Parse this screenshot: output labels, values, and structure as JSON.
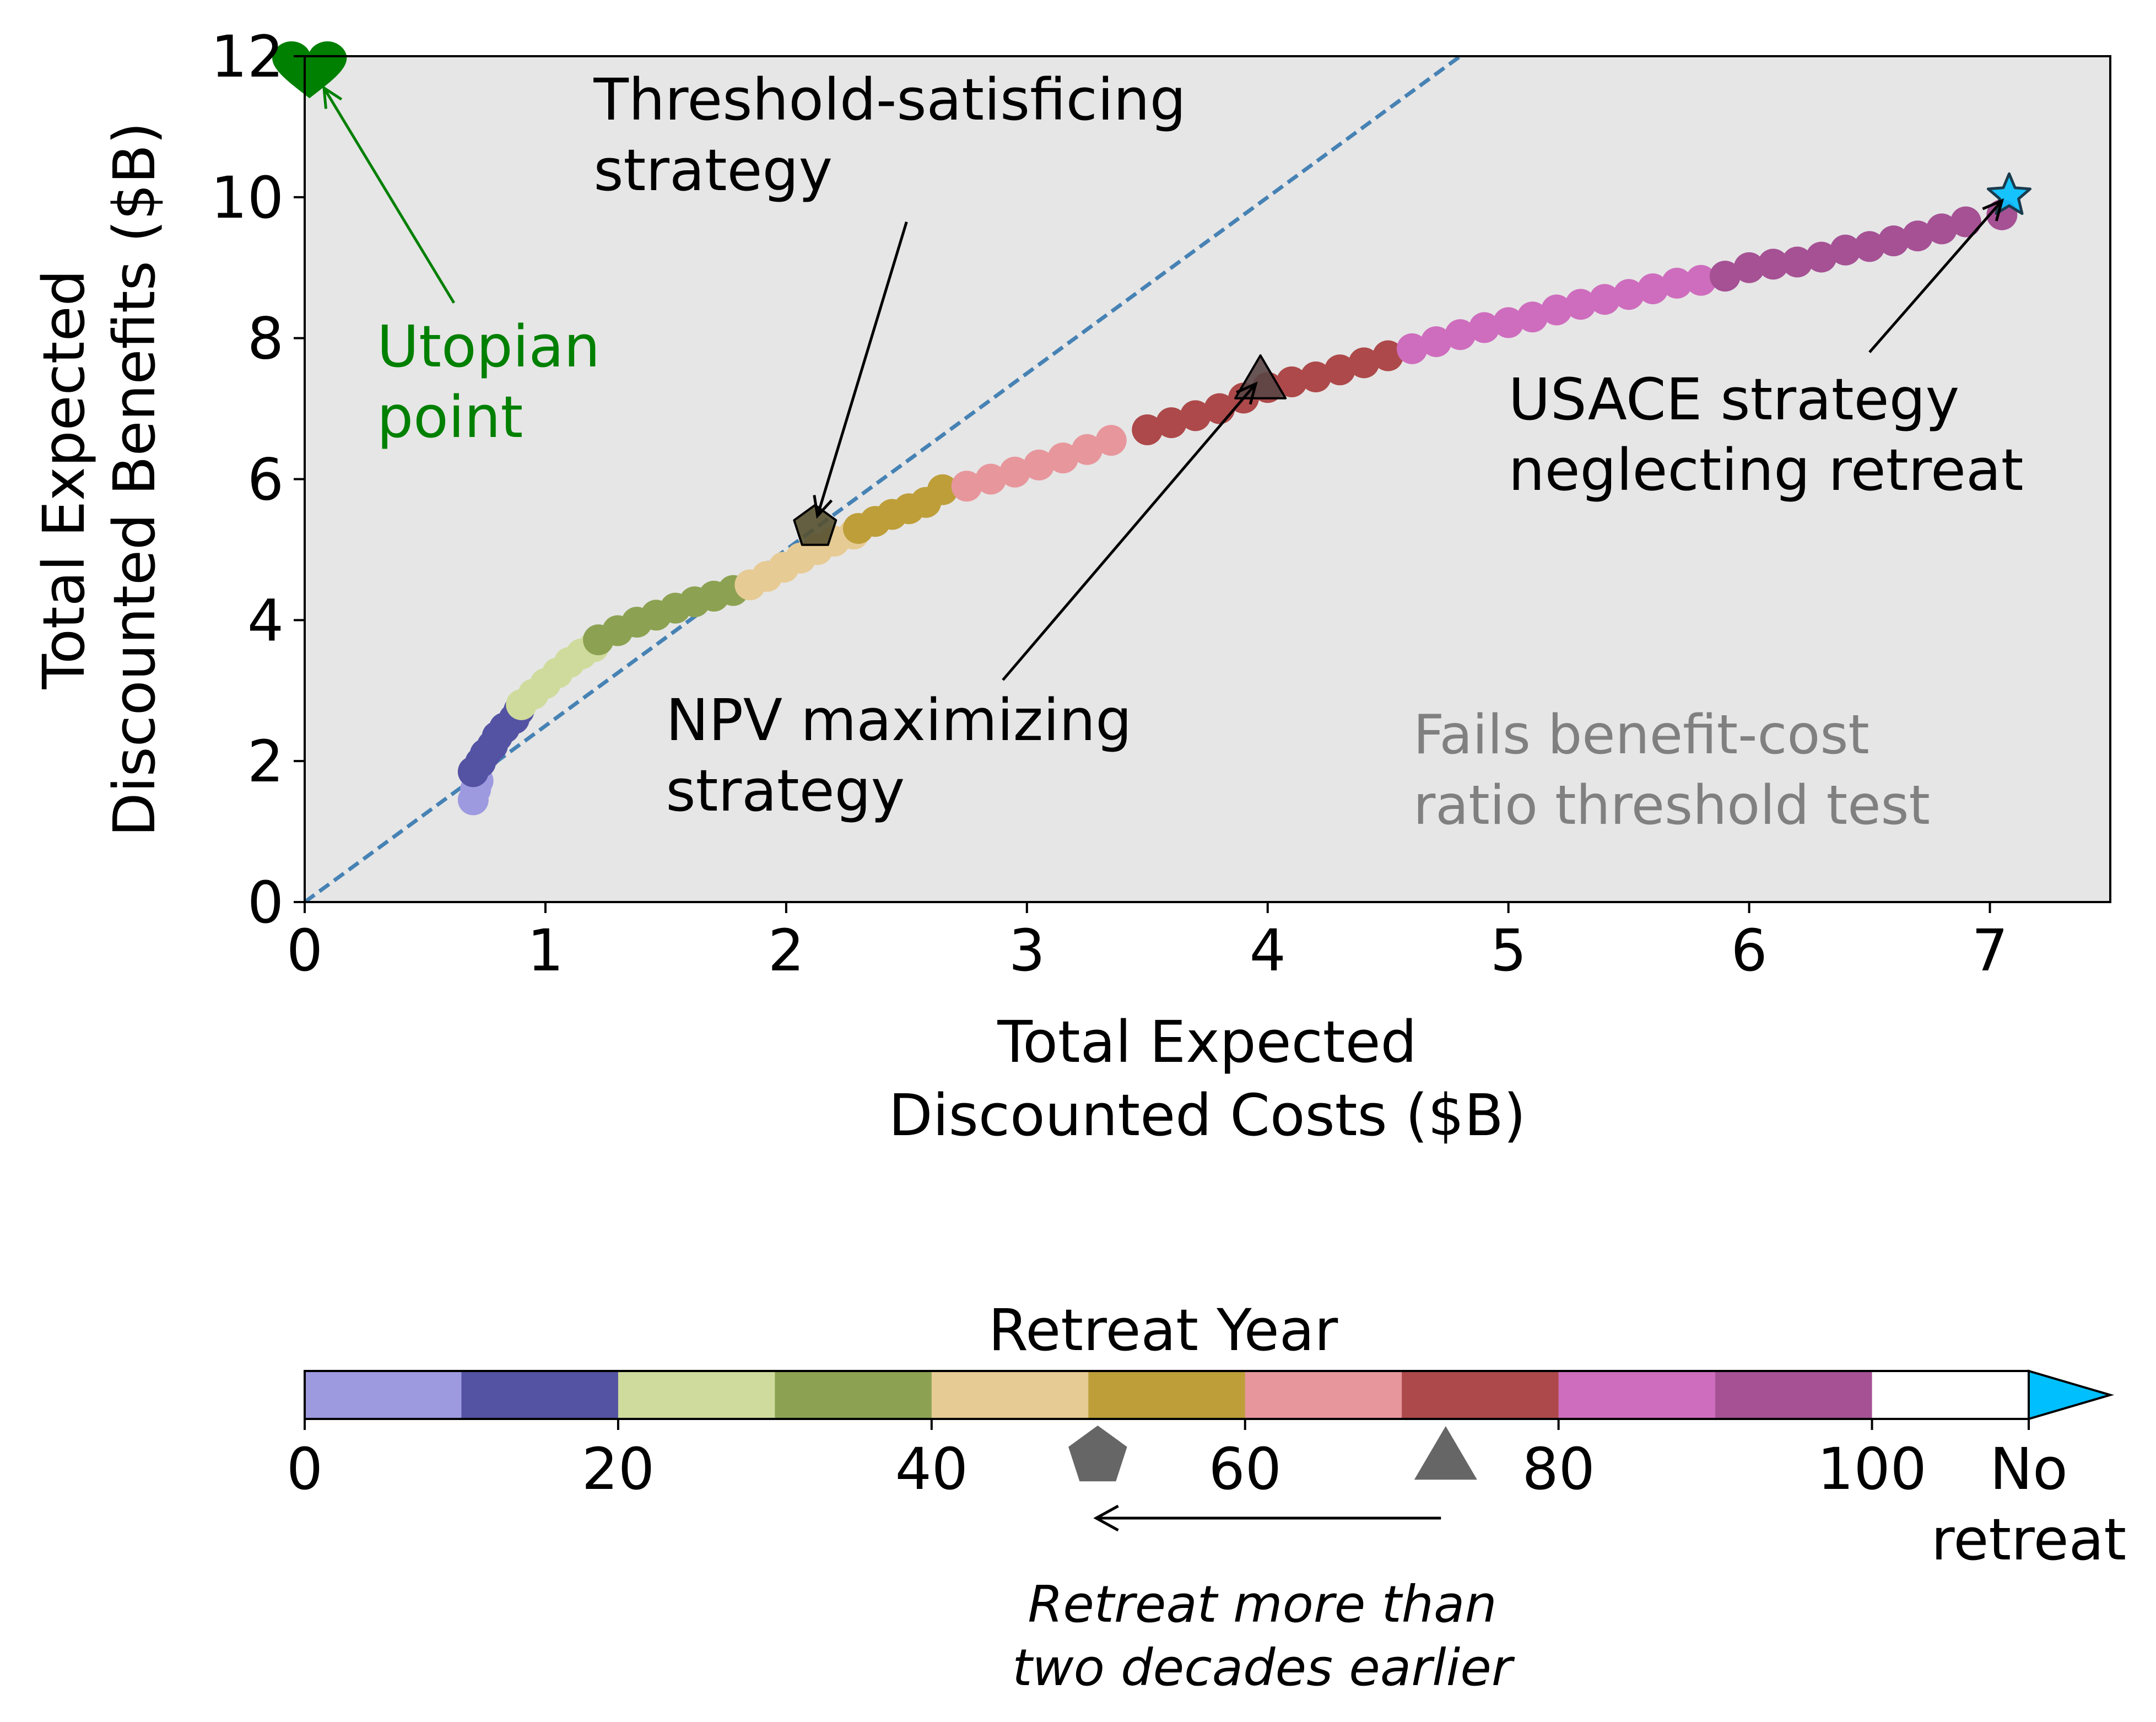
{
  "chart_data": [
    {
      "type": "scatter",
      "xlabel_lines": [
        "Total Expected",
        "Discounted Costs ($B)"
      ],
      "ylabel_lines": [
        "Total Expected",
        "Discounted Benefits ($B)"
      ],
      "xlim": [
        0,
        7.5
      ],
      "ylim": [
        0,
        12
      ],
      "x_ticks": [
        0,
        1,
        2,
        3,
        4,
        5,
        6,
        7
      ],
      "y_ticks": [
        0,
        2,
        4,
        6,
        8,
        10,
        12
      ],
      "grid": false,
      "shaded_region_label_lines": [
        "Fails benefit-cost",
        "ratio threshold test"
      ],
      "threshold_line": {
        "slope": 2.5,
        "color": "#4682b4",
        "style": "dashed"
      },
      "colors": {
        "0-10": "#9e9ae0",
        "10-20": "#5352a3",
        "20-30": "#cfdb9c",
        "30-40": "#8ca252",
        "40-50": "#e7cb94",
        "50-60": "#bd9e39",
        "60-70": "#e7969c",
        "70-80": "#ad494a",
        "80-90": "#ce6dbd",
        "90-100": "#a55194",
        "no_retreat": "#00bfff",
        "shade": "#e6e6e6",
        "utopian": "#008000",
        "marker": "#666666"
      },
      "series": [
        {
          "retreat_year_bin": "0-10",
          "color_key": "0-10",
          "points": [
            [
              0.7,
              1.45
            ],
            [
              0.71,
              1.6
            ],
            [
              0.72,
              1.72
            ]
          ]
        },
        {
          "retreat_year_bin": "10-20",
          "color_key": "10-20",
          "points": [
            [
              0.7,
              1.85
            ],
            [
              0.73,
              1.98
            ],
            [
              0.75,
              2.1
            ],
            [
              0.78,
              2.22
            ],
            [
              0.8,
              2.35
            ],
            [
              0.83,
              2.47
            ],
            [
              0.87,
              2.6
            ],
            [
              0.89,
              2.72
            ]
          ]
        },
        {
          "retreat_year_bin": "20-30",
          "color_key": "20-30",
          "points": [
            [
              0.9,
              2.8
            ],
            [
              0.95,
              2.95
            ],
            [
              1.0,
              3.1
            ],
            [
              1.05,
              3.25
            ],
            [
              1.1,
              3.4
            ],
            [
              1.15,
              3.52
            ],
            [
              1.2,
              3.62
            ]
          ]
        },
        {
          "retreat_year_bin": "30-40",
          "color_key": "30-40",
          "points": [
            [
              1.22,
              3.72
            ],
            [
              1.3,
              3.85
            ],
            [
              1.38,
              3.97
            ],
            [
              1.46,
              4.07
            ],
            [
              1.54,
              4.17
            ],
            [
              1.62,
              4.26
            ],
            [
              1.7,
              4.34
            ],
            [
              1.78,
              4.42
            ]
          ]
        },
        {
          "retreat_year_bin": "40-50",
          "color_key": "40-50",
          "points": [
            [
              1.85,
              4.5
            ],
            [
              1.92,
              4.62
            ],
            [
              1.99,
              4.75
            ],
            [
              2.06,
              4.88
            ],
            [
              2.13,
              5.0
            ],
            [
              2.2,
              5.12
            ],
            [
              2.28,
              5.22
            ]
          ]
        },
        {
          "retreat_year_bin": "50-60",
          "color_key": "50-60",
          "points": [
            [
              2.3,
              5.3
            ],
            [
              2.37,
              5.4
            ],
            [
              2.44,
              5.5
            ],
            [
              2.51,
              5.58
            ],
            [
              2.58,
              5.67
            ],
            [
              2.65,
              5.85
            ]
          ]
        },
        {
          "retreat_year_bin": "60-70",
          "color_key": "60-70",
          "points": [
            [
              2.75,
              5.9
            ],
            [
              2.85,
              6.0
            ],
            [
              2.95,
              6.1
            ],
            [
              3.05,
              6.2
            ],
            [
              3.15,
              6.3
            ],
            [
              3.25,
              6.42
            ],
            [
              3.35,
              6.55
            ]
          ]
        },
        {
          "retreat_year_bin": "70-80",
          "color_key": "70-80",
          "points": [
            [
              3.5,
              6.7
            ],
            [
              3.6,
              6.8
            ],
            [
              3.7,
              6.9
            ],
            [
              3.8,
              7.0
            ],
            [
              3.9,
              7.15
            ],
            [
              4.0,
              7.3
            ],
            [
              4.1,
              7.38
            ],
            [
              4.2,
              7.45
            ],
            [
              4.3,
              7.55
            ],
            [
              4.4,
              7.65
            ],
            [
              4.5,
              7.75
            ]
          ]
        },
        {
          "retreat_year_bin": "80-90",
          "color_key": "80-90",
          "points": [
            [
              4.6,
              7.85
            ],
            [
              4.7,
              7.95
            ],
            [
              4.8,
              8.05
            ],
            [
              4.9,
              8.15
            ],
            [
              5.0,
              8.22
            ],
            [
              5.1,
              8.3
            ],
            [
              5.2,
              8.4
            ],
            [
              5.3,
              8.48
            ],
            [
              5.4,
              8.55
            ],
            [
              5.5,
              8.62
            ],
            [
              5.6,
              8.7
            ],
            [
              5.7,
              8.78
            ],
            [
              5.8,
              8.82
            ]
          ]
        },
        {
          "retreat_year_bin": "90-100",
          "color_key": "90-100",
          "points": [
            [
              5.9,
              8.88
            ],
            [
              6.0,
              9.0
            ],
            [
              6.1,
              9.05
            ],
            [
              6.2,
              9.08
            ],
            [
              6.3,
              9.15
            ],
            [
              6.4,
              9.25
            ],
            [
              6.5,
              9.3
            ],
            [
              6.6,
              9.38
            ],
            [
              6.7,
              9.45
            ],
            [
              6.8,
              9.55
            ],
            [
              6.9,
              9.65
            ],
            [
              7.05,
              9.75
            ]
          ]
        }
      ],
      "special_points": [
        {
          "name": "threshold",
          "x": 2.12,
          "y": 5.32,
          "marker": "pentagon"
        },
        {
          "name": "npv",
          "x": 3.97,
          "y": 7.38,
          "marker": "triangle"
        },
        {
          "name": "usace",
          "x": 7.08,
          "y": 10.02,
          "marker": "star"
        },
        {
          "name": "utopian",
          "x": 0.02,
          "y": 11.8,
          "marker": "heart"
        }
      ],
      "annotations": [
        {
          "name": "threshold",
          "lines": [
            "Threshold-satisficing",
            "strategy"
          ],
          "text_x": 1.2,
          "text_y": 11.1,
          "arrow_from": [
            2.5,
            9.65
          ],
          "arrow_to": [
            2.13,
            5.48
          ],
          "color": "#000000"
        },
        {
          "name": "npv",
          "lines": [
            "NPV maximizing",
            "strategy"
          ],
          "text_x": 1.5,
          "text_y": 2.3,
          "arrow_from": [
            2.9,
            3.15
          ],
          "arrow_to": [
            3.95,
            7.35
          ],
          "color": "#000000"
        },
        {
          "name": "usace",
          "lines": [
            "USACE strategy",
            "neglecting retreat"
          ],
          "text_x": 5.0,
          "text_y": 6.85,
          "arrow_from": [
            6.5,
            7.8
          ],
          "arrow_to": [
            7.05,
            9.95
          ],
          "color": "#000000"
        },
        {
          "name": "utopian",
          "lines": [
            "Utopian",
            "point"
          ],
          "text_x": 0.3,
          "text_y": 7.6,
          "arrow_from": [
            0.62,
            8.5
          ],
          "arrow_to": [
            0.08,
            11.55
          ],
          "color": "#008000"
        }
      ]
    },
    {
      "type": "colorbar",
      "title": "Retreat Year",
      "tick_labels": [
        "0",
        "20",
        "40",
        "60",
        "80",
        "100"
      ],
      "tick_values": [
        0,
        20,
        40,
        60,
        80,
        100
      ],
      "no_retreat_lines": [
        "No",
        "retreat"
      ],
      "bins": [
        "0-10",
        "10-20",
        "20-30",
        "30-40",
        "40-50",
        "50-60",
        "60-70",
        "70-80",
        "80-90",
        "90-100",
        "no_retreat"
      ],
      "markers": [
        {
          "name": "threshold",
          "value": 50.6,
          "marker": "pentagon"
        },
        {
          "name": "npv",
          "value": 72.8,
          "marker": "triangle"
        }
      ],
      "arrow_note_lines": [
        "Retreat more than",
        "two decades earlier"
      ],
      "arrow_from_value": 72.5,
      "arrow_to_value": 50.5
    }
  ]
}
